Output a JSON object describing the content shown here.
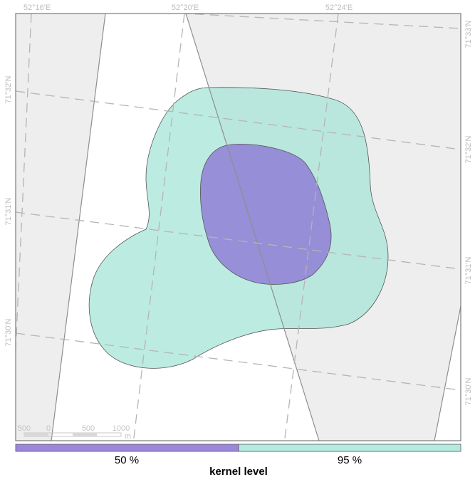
{
  "map": {
    "graticule": {
      "top_labels": [
        "52°16'E",
        "52°20'E",
        "52°24'E"
      ],
      "left_labels": [
        "71°32'N",
        "71°31'N",
        "71°30'N"
      ],
      "right_labels": [
        "71°33'N",
        "71°32'N",
        "71°31'N",
        "71°30'N"
      ]
    },
    "scale_bar": {
      "ticks": [
        "500",
        "0",
        "500",
        "1000"
      ],
      "unit": "m"
    },
    "colors": {
      "background_land": "#efeeee",
      "strip": "#ffffff",
      "kernel_95": "#a9e5d8",
      "kernel_50": "#8f7ad6",
      "graticule": "#b5b5b5",
      "frame": "#7a7a7a"
    },
    "contours": [
      {
        "level": "95 %",
        "color": "#a9e5d8"
      },
      {
        "level": "50 %",
        "color": "#8f7ad6"
      }
    ]
  },
  "legend": {
    "title": "kernel level",
    "items": [
      {
        "label": "50 %",
        "color": "#9b87dc"
      },
      {
        "label": "95 %",
        "color": "#b3ebde"
      }
    ]
  }
}
